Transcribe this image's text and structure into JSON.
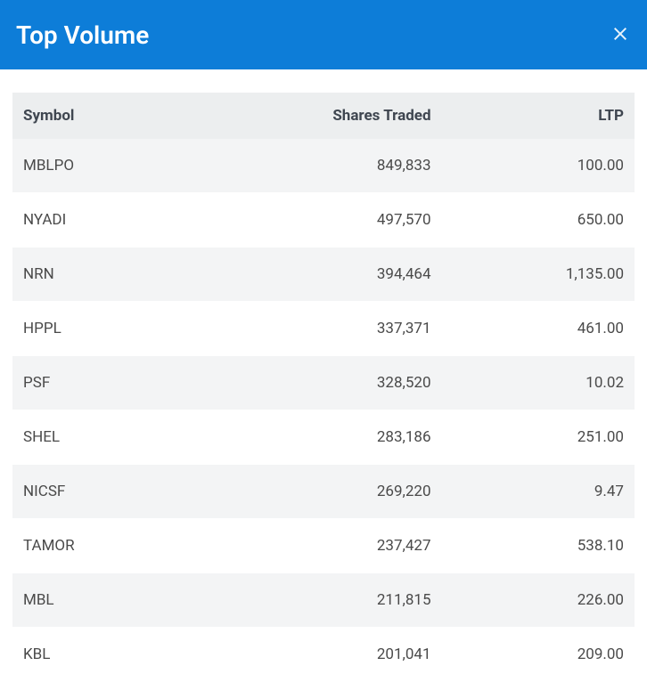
{
  "header": {
    "title": "Top Volume"
  },
  "table": {
    "columns": [
      "Symbol",
      "Shares Traded",
      "LTP"
    ],
    "rows": [
      {
        "symbol": "MBLPO",
        "shares": "849,833",
        "ltp": "100.00"
      },
      {
        "symbol": "NYADI",
        "shares": "497,570",
        "ltp": "650.00"
      },
      {
        "symbol": "NRN",
        "shares": "394,464",
        "ltp": "1,135.00"
      },
      {
        "symbol": "HPPL",
        "shares": "337,371",
        "ltp": "461.00"
      },
      {
        "symbol": "PSF",
        "shares": "328,520",
        "ltp": "10.02"
      },
      {
        "symbol": "SHEL",
        "shares": "283,186",
        "ltp": "251.00"
      },
      {
        "symbol": "NICSF",
        "shares": "269,220",
        "ltp": "9.47"
      },
      {
        "symbol": "TAMOR",
        "shares": "237,427",
        "ltp": "538.10"
      },
      {
        "symbol": "MBL",
        "shares": "211,815",
        "ltp": "226.00"
      },
      {
        "symbol": "KBL",
        "shares": "201,041",
        "ltp": "209.00"
      }
    ]
  },
  "colors": {
    "header_bg": "#0d7dd8",
    "header_text": "#ffffff",
    "th_bg": "#eceeef",
    "row_odd_bg": "#f3f4f5",
    "row_even_bg": "#ffffff",
    "text": "#4a4a4a"
  }
}
